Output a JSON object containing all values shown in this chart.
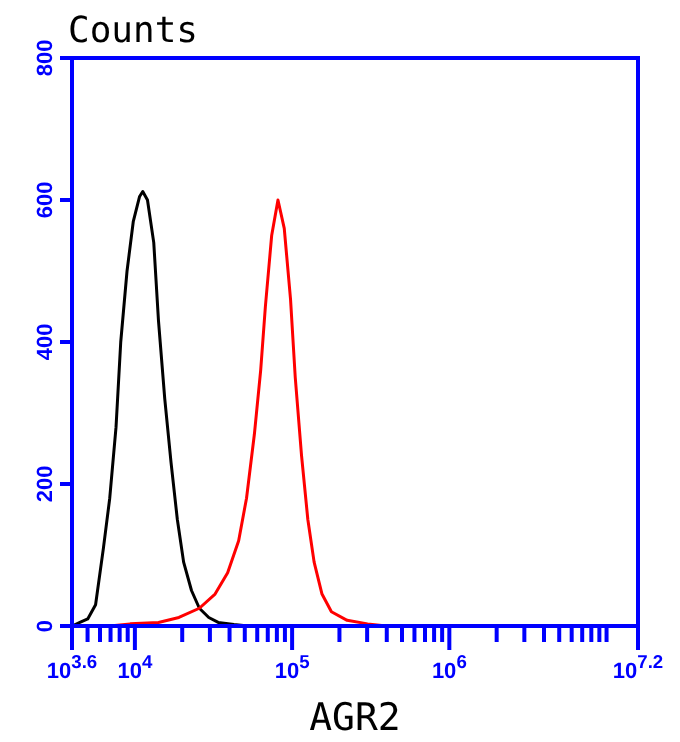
{
  "chart_data": {
    "type": "line",
    "ylabel": "Counts",
    "xlabel": "AGR2",
    "log": "x",
    "xlim": [
      3981,
      15848932
    ],
    "ylim": [
      0,
      800
    ],
    "yticks": [
      0,
      200,
      400,
      600,
      800
    ],
    "xticks": [
      {
        "value": 3981,
        "label": "10$^{3.6}$"
      },
      {
        "value": 5000,
        "label": null
      },
      {
        "value": 6000,
        "label": null
      },
      {
        "value": 7000,
        "label": null
      },
      {
        "value": 8000,
        "label": null
      },
      {
        "value": 9000,
        "label": null
      },
      {
        "value": 10000,
        "label": "10$^{4}$"
      },
      {
        "value": 20000,
        "label": null
      },
      {
        "value": 30000,
        "label": null
      },
      {
        "value": 40000,
        "label": null
      },
      {
        "value": 50000,
        "label": null
      },
      {
        "value": 60000,
        "label": null
      },
      {
        "value": 70000,
        "label": null
      },
      {
        "value": 80000,
        "label": null
      },
      {
        "value": 90000,
        "label": null
      },
      {
        "value": 100000,
        "label": "10$^{5}$"
      },
      {
        "value": 200000,
        "label": null
      },
      {
        "value": 300000,
        "label": null
      },
      {
        "value": 400000,
        "label": null
      },
      {
        "value": 500000,
        "label": null
      },
      {
        "value": 600000,
        "label": null
      },
      {
        "value": 700000,
        "label": null
      },
      {
        "value": 800000,
        "label": null
      },
      {
        "value": 900000,
        "label": null
      },
      {
        "value": 1000000,
        "label": "10$^{6}$"
      },
      {
        "value": 2000000,
        "label": null
      },
      {
        "value": 3000000,
        "label": null
      },
      {
        "value": 4000000,
        "label": null
      },
      {
        "value": 5000000,
        "label": null
      },
      {
        "value": 6000000,
        "label": null
      },
      {
        "value": 7000000,
        "label": null
      },
      {
        "value": 8000000,
        "label": null
      },
      {
        "value": 9000000,
        "label": null
      },
      {
        "value": 10000000,
        "label": null
      },
      {
        "value": 15848932,
        "label": "10$^{7.2}$"
      }
    ],
    "grid": false,
    "series": [
      {
        "color": "#000000",
        "x": [
          3981,
          4467,
          5012,
          5623,
          6310,
          6918,
          7586,
          8128,
          8913,
          9772,
          10715,
          11220,
          12023,
          13183,
          14125,
          15488,
          16982,
          18621,
          20417,
          22909,
          25704,
          29512,
          33884,
          42658,
          52481
        ],
        "values": [
          0,
          5,
          10,
          30,
          110,
          180,
          280,
          400,
          500,
          570,
          605,
          612,
          600,
          540,
          430,
          320,
          230,
          150,
          90,
          50,
          25,
          12,
          5,
          2,
          0
        ]
      },
      {
        "color": "#ff0000",
        "x": [
          6918,
          9333,
          14125,
          19055,
          25704,
          32359,
          38905,
          45709,
          51286,
          57544,
          63096,
          67608,
          74131,
          81283,
          89125,
          97724,
          104713,
          114815,
          125893,
          138038,
          154882,
          177828,
          223872,
          301995,
          398107
        ],
        "values": [
          0,
          3,
          5,
          12,
          25,
          45,
          75,
          120,
          180,
          270,
          360,
          450,
          550,
          600,
          560,
          460,
          350,
          240,
          150,
          90,
          45,
          20,
          8,
          3,
          0
        ]
      }
    ]
  }
}
